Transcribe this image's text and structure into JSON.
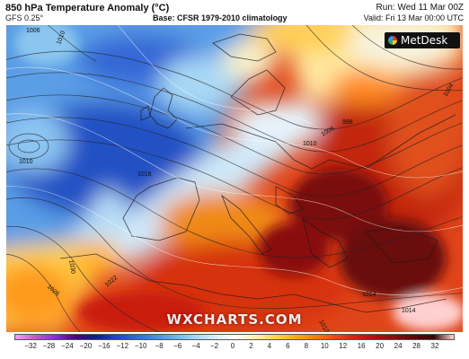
{
  "header": {
    "title": "850 hPa Temperature Anomaly (°C)",
    "model": "GFS 0.25°",
    "base": "Base: CFSR 1979-2010 climatology",
    "run": "Run: Wed 11 Mar 00Z",
    "valid": "Valid: Fri 13 Mar 00:00 UTC"
  },
  "logo": {
    "text": "MetDesk"
  },
  "watermark": "WXCHARTS.COM",
  "isobars": [
    {
      "label": "1006"
    },
    {
      "label": "1010"
    },
    {
      "label": "1010"
    },
    {
      "label": "1010"
    },
    {
      "label": "1018"
    },
    {
      "label": "1030"
    },
    {
      "label": "1026"
    },
    {
      "label": "1022"
    },
    {
      "label": "1006"
    },
    {
      "label": "998"
    },
    {
      "label": "1004"
    },
    {
      "label": "1014"
    },
    {
      "label": "1014"
    },
    {
      "label": "1010"
    }
  ],
  "colorbar": {
    "ticks": [
      "−32",
      "−28",
      "−24",
      "−20",
      "−16",
      "−12",
      "−10",
      "−8",
      "−6",
      "−4",
      "−2",
      "0",
      "2",
      "4",
      "6",
      "8",
      "10",
      "12",
      "16",
      "20",
      "24",
      "28",
      "32"
    ],
    "colors": [
      "#ff99ff",
      "#cc55cc",
      "#8a2be2",
      "#4b0082",
      "#0b1e8f",
      "#1e40c8",
      "#2b66dd",
      "#3b8ee8",
      "#66b5f0",
      "#9fd6f6",
      "#d6eefb",
      "#ffffff",
      "#fff3b0",
      "#ffd64a",
      "#ffae1a",
      "#ff7f00",
      "#ef4a10",
      "#d82010",
      "#b50f0f",
      "#8e0a0a",
      "#5e0606",
      "#3a0303",
      "#ffd6d6"
    ]
  }
}
